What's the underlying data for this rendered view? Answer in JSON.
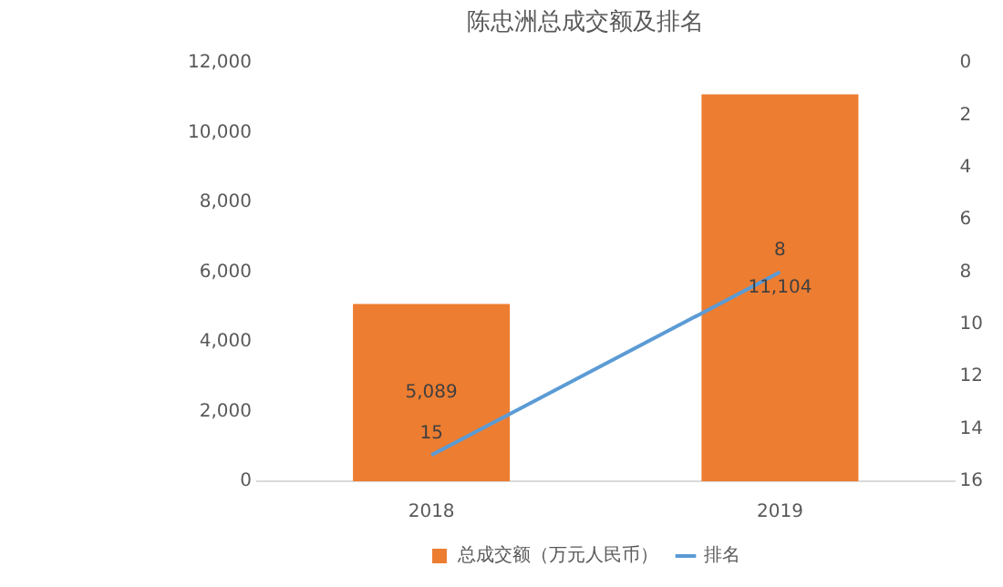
{
  "chart_data": {
    "type": "bar",
    "title": "陈忠洲总成交额及排名",
    "categories": [
      "2018",
      "2019"
    ],
    "series": [
      {
        "name": "总成交额（万元人民币）",
        "color": "#ed7d31",
        "values": [
          5089,
          11104
        ],
        "value_labels": [
          "5,089",
          "11,104"
        ]
      },
      {
        "name": "排名",
        "type": "line",
        "axis": "y2",
        "color": "#5b9bd5",
        "values": [
          15,
          8
        ],
        "value_labels": [
          "15",
          "8"
        ]
      }
    ],
    "ylim": [
      0,
      12000
    ],
    "yticks": [
      0,
      {
        "value": 2000,
        "label": "2,000"
      },
      {
        "value": 4000,
        "label": "4,000"
      },
      {
        "value": 6000,
        "label": "6,000"
      },
      {
        "value": 8000,
        "label": "8,000"
      },
      {
        "value": 10000,
        "label": "10,000"
      },
      {
        "value": 12000,
        "label": "12,000"
      }
    ],
    "y2lim": [
      16,
      0
    ],
    "y2ticks": [
      0,
      2,
      4,
      6,
      8,
      10,
      12,
      14,
      16
    ],
    "legend": "bottom",
    "grid": false,
    "marker": "none"
  }
}
